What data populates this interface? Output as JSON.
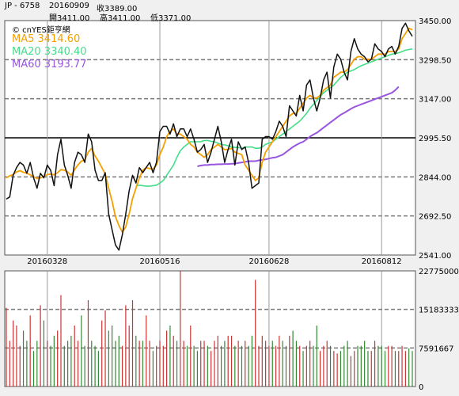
{
  "header": {
    "symbol": "JP - 6758",
    "date": "20160909",
    "close_label": "收3389.00",
    "open_label": "開3411.00",
    "high_label": "高3411.00",
    "low_label": "低3371.00"
  },
  "brand": "© cnYES鉅亨網",
  "legend": [
    {
      "label": "MA5",
      "value": "3414.60",
      "color": "#f5a000"
    },
    {
      "label": "MA20",
      "value": "3340.40",
      "color": "#44dd88"
    },
    {
      "label": "MA60",
      "value": "3193.77",
      "color": "#9955dd"
    }
  ],
  "colors": {
    "price": "#111111",
    "ma5": "#f5a000",
    "ma20": "#44dd88",
    "ma60": "#9955dd",
    "vol_up": "#cc3333",
    "vol_down": "#338833",
    "grid": "#777777",
    "background": "#ffffff"
  },
  "chart_data": [
    {
      "type": "line",
      "title": "",
      "x_tick_labels": [
        "20160328",
        "20160516",
        "20160628",
        "20160812"
      ],
      "x_tick_index": [
        12,
        45,
        77,
        110
      ],
      "y_tick_labels": [
        "3450.00",
        "3298.50",
        "3147.00",
        "2995.50",
        "2844.00",
        "2692.50",
        "2541.00"
      ],
      "ylim": [
        2541,
        3450
      ],
      "reference_line": 2995.5,
      "series": [
        {
          "name": "MA5",
          "legend_value": "3414.60"
        },
        {
          "name": "MA20",
          "legend_value": "3340.40"
        },
        {
          "name": "MA60",
          "legend_value": "3193.77"
        }
      ],
      "price": [
        2758,
        2766,
        2850,
        2880,
        2900,
        2890,
        2858,
        2900,
        2840,
        2800,
        2858,
        2840,
        2890,
        2870,
        2810,
        2930,
        2990,
        2890,
        2850,
        2800,
        2900,
        2940,
        2930,
        2900,
        3010,
        2980,
        2870,
        2830,
        2830,
        2860,
        2700,
        2640,
        2580,
        2560,
        2620,
        2700,
        2790,
        2850,
        2820,
        2880,
        2860,
        2880,
        2900,
        2860,
        2900,
        3020,
        3040,
        3040,
        3010,
        3050,
        3000,
        3030,
        3030,
        3000,
        3030,
        2990,
        2940,
        2950,
        2970,
        2900,
        2940,
        2990,
        3040,
        2980,
        2900,
        2950,
        2990,
        2890,
        2980,
        2950,
        2960,
        2900,
        2800,
        2810,
        2820,
        2990,
        3000,
        3000,
        2990,
        3020,
        3060,
        3040,
        3000,
        3120,
        3100,
        3080,
        3160,
        3100,
        3200,
        3220,
        3150,
        3100,
        3150,
        3220,
        3250,
        3150,
        3270,
        3320,
        3300,
        3250,
        3220,
        3330,
        3380,
        3340,
        3320,
        3310,
        3290,
        3300,
        3360,
        3340,
        3330,
        3310,
        3340,
        3350,
        3320,
        3350,
        3420,
        3440,
        3410,
        3389
      ],
      "ma5": [
        2840,
        2848,
        2853,
        2863,
        2868,
        2862,
        2858,
        2852,
        2845,
        2838,
        2840,
        2846,
        2853,
        2855,
        2852,
        2860,
        2872,
        2870,
        2863,
        2850,
        2872,
        2890,
        2905,
        2910,
        2940,
        2955,
        2925,
        2905,
        2880,
        2855,
        2800,
        2750,
        2690,
        2655,
        2630,
        2650,
        2700,
        2760,
        2800,
        2840,
        2870,
        2880,
        2876,
        2874,
        2890,
        2930,
        2960,
        3000,
        3020,
        3030,
        3010,
        3010,
        3000,
        2990,
        2970,
        2960,
        2940,
        2930,
        2920,
        2930,
        2950,
        2960,
        2970,
        2960,
        2950,
        2950,
        2955,
        2940,
        2935,
        2930,
        2890,
        2870,
        2850,
        2830,
        2840,
        2900,
        2940,
        2960,
        2980,
        3000,
        3020,
        3040,
        3060,
        3080,
        3090,
        3090,
        3110,
        3130,
        3150,
        3160,
        3150,
        3150,
        3160,
        3180,
        3190,
        3200,
        3230,
        3240,
        3250,
        3250,
        3260,
        3280,
        3300,
        3310,
        3310,
        3300,
        3300,
        3300,
        3310,
        3320,
        3320,
        3320,
        3330,
        3330,
        3330,
        3340,
        3380,
        3400,
        3420,
        3414.6
      ],
      "ma20": [
        null,
        null,
        null,
        null,
        null,
        null,
        null,
        null,
        null,
        null,
        null,
        null,
        null,
        null,
        null,
        null,
        null,
        null,
        null,
        null,
        null,
        null,
        null,
        null,
        null,
        null,
        null,
        null,
        null,
        null,
        null,
        null,
        null,
        null,
        null,
        null,
        null,
        null,
        2810,
        2812,
        2810,
        2808,
        2808,
        2810,
        2812,
        2820,
        2830,
        2850,
        2870,
        2890,
        2920,
        2945,
        2960,
        2970,
        2980,
        2980,
        2980,
        2980,
        2985,
        2985,
        2982,
        2980,
        2975,
        2970,
        2968,
        2965,
        2960,
        2958,
        2958,
        2955,
        2960,
        2960,
        2960,
        2955,
        2955,
        2960,
        2970,
        2975,
        2980,
        2990,
        3000,
        3010,
        3020,
        3030,
        3040,
        3050,
        3060,
        3075,
        3090,
        3110,
        3125,
        3140,
        3155,
        3170,
        3180,
        3190,
        3200,
        3215,
        3230,
        3240,
        3250,
        3255,
        3260,
        3268,
        3275,
        3280,
        3285,
        3290,
        3295,
        3300,
        3305,
        3310,
        3315,
        3320,
        3322,
        3325,
        3330,
        3335,
        3338,
        3340.4
      ],
      "ma60": [
        null,
        null,
        null,
        null,
        null,
        null,
        null,
        null,
        null,
        null,
        null,
        null,
        null,
        null,
        null,
        null,
        null,
        null,
        null,
        null,
        null,
        null,
        null,
        null,
        null,
        null,
        null,
        null,
        null,
        null,
        null,
        null,
        null,
        null,
        null,
        null,
        null,
        null,
        null,
        null,
        null,
        null,
        null,
        null,
        null,
        null,
        null,
        null,
        null,
        null,
        null,
        null,
        null,
        null,
        null,
        null,
        2885,
        2888,
        2890,
        2890,
        2892,
        2892,
        2893,
        2893,
        2894,
        2894,
        2895,
        2895,
        2898,
        2900,
        2902,
        2905,
        2905,
        2905,
        2908,
        2910,
        2912,
        2915,
        2918,
        2920,
        2925,
        2930,
        2940,
        2950,
        2960,
        2968,
        2975,
        2980,
        2990,
        3000,
        3008,
        3015,
        3025,
        3035,
        3045,
        3055,
        3065,
        3075,
        3085,
        3092,
        3100,
        3108,
        3115,
        3120,
        3125,
        3130,
        3135,
        3140,
        3145,
        3150,
        3155,
        3160,
        3165,
        3170,
        3180,
        3193.77
      ]
    },
    {
      "type": "bar",
      "title": "",
      "y_tick_labels": [
        "22775000",
        "15183333",
        "7591667",
        "0"
      ],
      "ylim": [
        0,
        22775000
      ],
      "volume": [
        15.5,
        9,
        13,
        12,
        8,
        11,
        9,
        14,
        7,
        9,
        16,
        13,
        9,
        8,
        10,
        11,
        18,
        8,
        9,
        10,
        12,
        9,
        14,
        8,
        17,
        9,
        8,
        7,
        13,
        15,
        11,
        12,
        9,
        10,
        8,
        16,
        12,
        17,
        10,
        9,
        9,
        14,
        9,
        7,
        8,
        9,
        8,
        11,
        12,
        10,
        9,
        22.8,
        9,
        8,
        12,
        8,
        7,
        9,
        9,
        8,
        7,
        9,
        10,
        8,
        9,
        10,
        10,
        8,
        9,
        8,
        9,
        8,
        10,
        21,
        8,
        10,
        9,
        8,
        9,
        8,
        10,
        9,
        8,
        10,
        11,
        9,
        8,
        7,
        8,
        9,
        8,
        12,
        7,
        8,
        9,
        8,
        7,
        6.5,
        7,
        8,
        9,
        6,
        7,
        8,
        8,
        9,
        7,
        7,
        9,
        8,
        8,
        7,
        8,
        8,
        7,
        7,
        8,
        7,
        7.5,
        7
      ],
      "volume_unit": 1000000
    }
  ]
}
